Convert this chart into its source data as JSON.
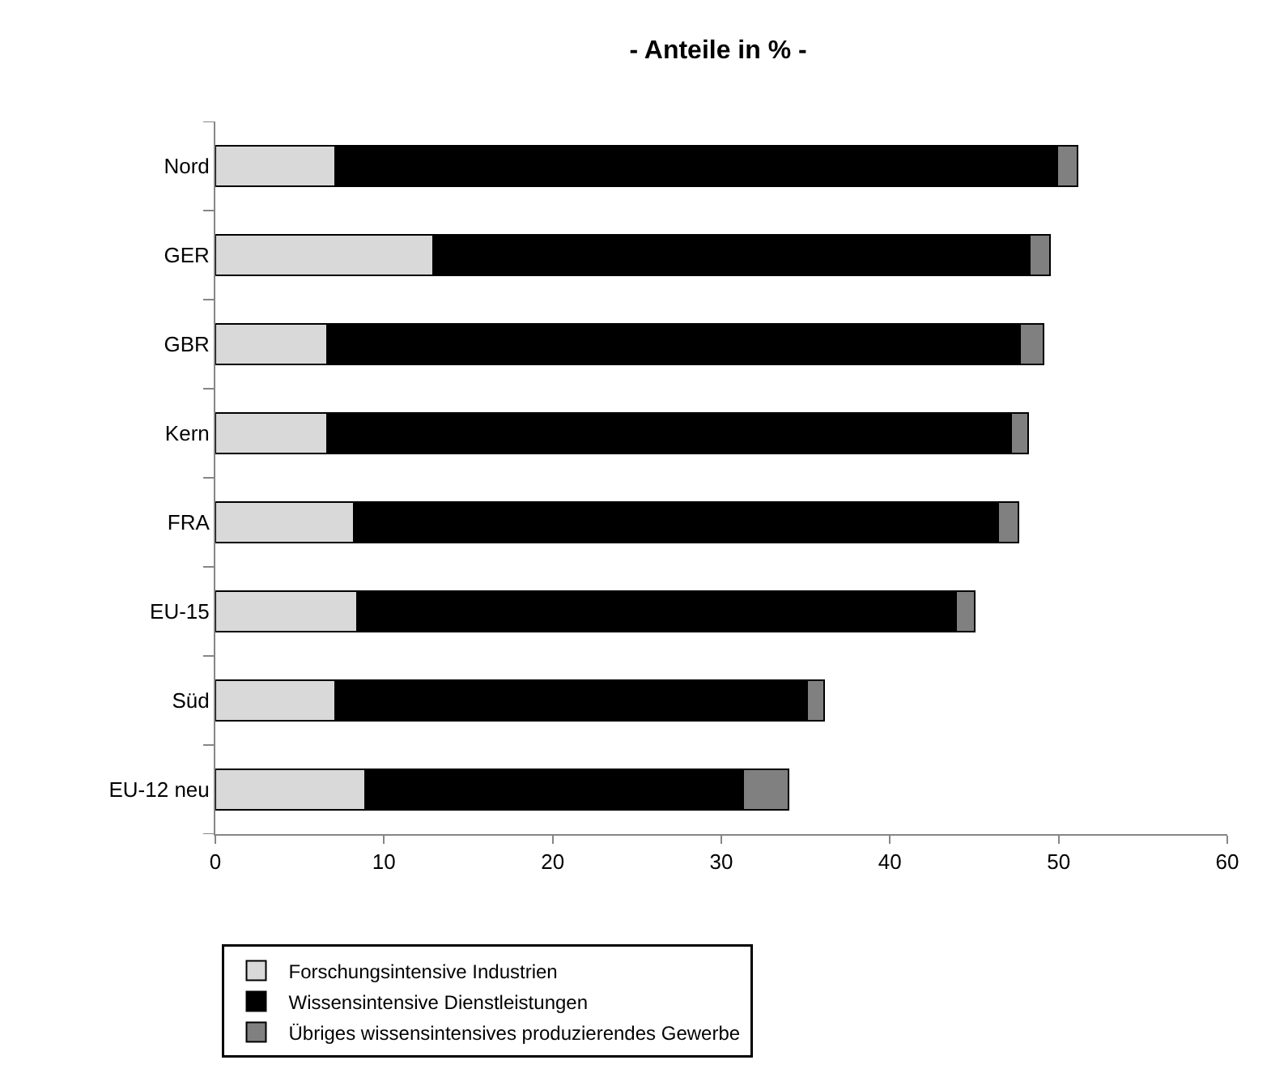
{
  "chart_data": {
    "type": "bar",
    "orientation": "horizontal",
    "stacked": true,
    "title": "- Anteile in % -",
    "categories": [
      "Nord",
      "GER",
      "GBR",
      "Kern",
      "FRA",
      "EU-15",
      "Süd",
      "EU-12 neu"
    ],
    "series": [
      {
        "name": "Forschungsintensive Industrien",
        "color": "#d9d9d9",
        "values": [
          7.1,
          12.9,
          6.6,
          6.6,
          8.2,
          8.4,
          7.1,
          8.9
        ]
      },
      {
        "name": "Wissensintensive Dienstleistungen",
        "color": "#000000",
        "values": [
          42.8,
          35.4,
          41.1,
          40.6,
          38.2,
          35.5,
          28.0,
          22.4
        ]
      },
      {
        "name": "Übriges wissensintensives produzierendes Gewerbe",
        "color": "#808080",
        "values": [
          1.2,
          1.2,
          1.4,
          1.0,
          1.2,
          1.1,
          1.0,
          2.7
        ]
      }
    ],
    "xlim": [
      0,
      60
    ],
    "xticks": [
      0,
      10,
      20,
      30,
      40,
      50,
      60
    ],
    "legend": "bottom"
  }
}
